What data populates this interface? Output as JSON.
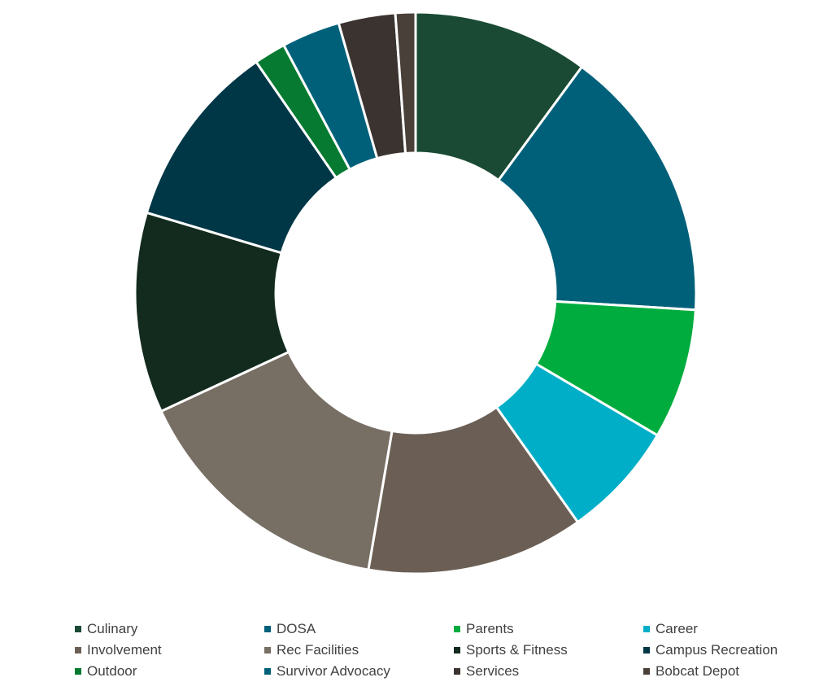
{
  "chart_data": {
    "type": "pie",
    "donut": true,
    "title": "",
    "legend_position": "bottom",
    "slices": [
      {
        "name": "Culinary",
        "value": 10.5,
        "color": "#1a4a34"
      },
      {
        "name": "DOSA",
        "value": 16.5,
        "color": "#00607a"
      },
      {
        "name": "Parents",
        "value": 7.8,
        "color": "#00ac3e"
      },
      {
        "name": "Career",
        "value": 7.0,
        "color": "#00aec8"
      },
      {
        "name": "Involvement",
        "value": 13.0,
        "color": "#6b5f55"
      },
      {
        "name": "Rec Facilities",
        "value": 16.0,
        "color": "#776e64"
      },
      {
        "name": "Sports & Fitness",
        "value": 12.0,
        "color": "#122b1e"
      },
      {
        "name": "Campus Recreation",
        "value": 11.2,
        "color": "#003746"
      },
      {
        "name": "Outdoor",
        "value": 1.9,
        "color": "#057a30"
      },
      {
        "name": "Survivor Advocacy",
        "value": 3.5,
        "color": "#00607a"
      },
      {
        "name": "Services",
        "value": 3.4,
        "color": "#3b332f"
      },
      {
        "name": "Bobcat Depot",
        "value": 1.2,
        "color": "#4a403a"
      }
    ]
  }
}
